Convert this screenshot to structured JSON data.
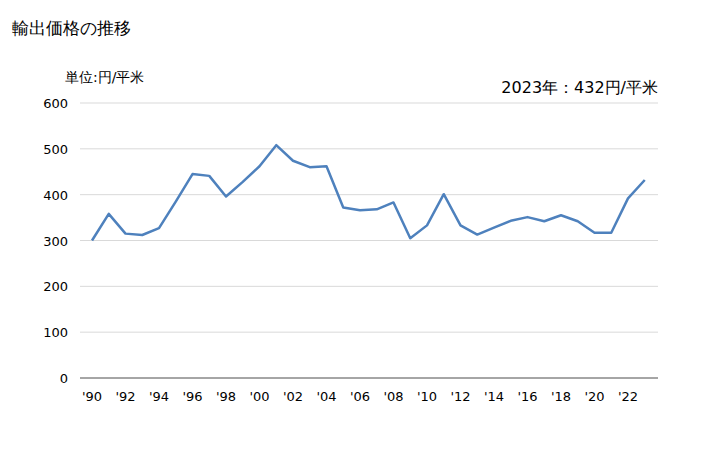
{
  "chart_data": {
    "type": "line",
    "title": "輸出価格の推移",
    "y_label": "単位:円/平米",
    "annotation": "2023年：432円/平米",
    "categories": [
      "'90",
      null,
      "'92",
      null,
      "'94",
      null,
      "'96",
      null,
      "'98",
      null,
      "'00",
      null,
      "'02",
      null,
      "'04",
      null,
      "'06",
      null,
      "'08",
      null,
      "'10",
      null,
      "'12",
      null,
      "'14",
      null,
      "'16",
      null,
      "'18",
      null,
      "'20",
      null,
      "'22",
      null
    ],
    "values": [
      300,
      358,
      315,
      312,
      327,
      385,
      445,
      441,
      396,
      428,
      462,
      508,
      474,
      460,
      462,
      372,
      366,
      368,
      383,
      305,
      333,
      401,
      333,
      313,
      328,
      343,
      351,
      342,
      355,
      342,
      317,
      317,
      392,
      432
    ],
    "color": "#4e81bd",
    "ylim": [
      0,
      600
    ],
    "yticks": [
      0,
      100,
      200,
      300,
      400,
      500,
      600
    ],
    "grid": true
  }
}
